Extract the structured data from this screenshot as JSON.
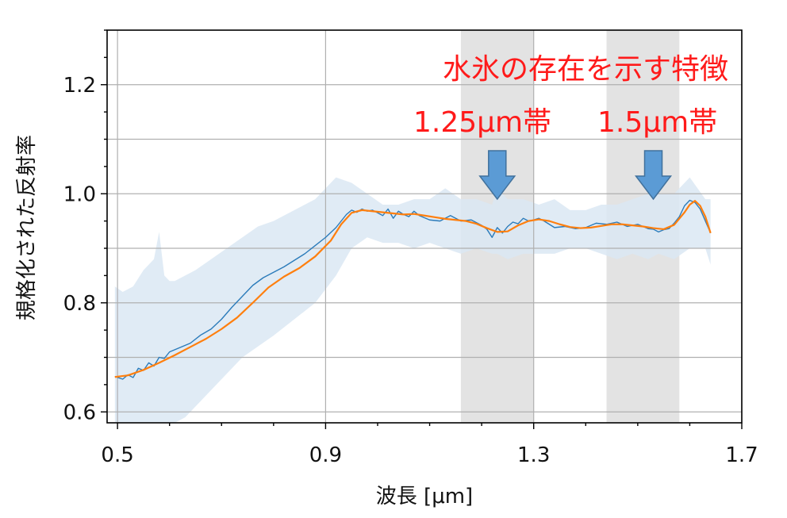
{
  "chart_data": {
    "type": "line",
    "xlabel": "波長 [μm]",
    "ylabel": "規格化された反射率",
    "xlim": [
      0.48,
      1.7
    ],
    "ylim": [
      0.58,
      1.3
    ],
    "xticks": [
      {
        "value": 0.5,
        "label": "0.5"
      },
      {
        "value": 0.9,
        "label": "0.9"
      },
      {
        "value": 1.3,
        "label": "1.3"
      },
      {
        "value": 1.7,
        "label": "1.7"
      }
    ],
    "yticks": [
      {
        "value": 0.6,
        "label": "0.6"
      },
      {
        "value": 0.8,
        "label": "0.8"
      },
      {
        "value": 1.0,
        "label": "1.0"
      },
      {
        "value": 1.2,
        "label": "1.2"
      }
    ],
    "grid": true,
    "colors": {
      "raw_line": "#2b7bba",
      "smooth_line": "#ff7f0e",
      "band": "#dbe7f3",
      "highlight": "#bdbdbd",
      "annotation": "#ff1a1a",
      "arrow_fill": "#5b9bd5",
      "arrow_stroke": "#41719c"
    },
    "highlight_bands": [
      {
        "x0": 1.16,
        "x1": 1.3
      },
      {
        "x0": 1.44,
        "x1": 1.58
      }
    ],
    "annotations": {
      "title": "水氷の存在を示す特徴",
      "band_1": "1.25μm帯",
      "band_2": "1.5μm帯"
    },
    "arrows": [
      {
        "x": 1.23
      },
      {
        "x": 1.53
      }
    ],
    "series": [
      {
        "x": [
          0.495,
          0.51,
          0.52,
          0.53,
          0.54,
          0.55,
          0.56,
          0.57,
          0.58,
          0.59,
          0.6,
          0.62,
          0.64,
          0.66,
          0.68,
          0.7,
          0.72,
          0.74,
          0.76,
          0.78,
          0.8,
          0.82,
          0.84,
          0.86,
          0.88,
          0.9,
          0.92,
          0.94,
          0.95,
          0.96,
          0.97,
          0.98,
          0.99,
          1.0,
          1.01,
          1.02,
          1.03,
          1.04,
          1.05,
          1.06,
          1.07,
          1.08,
          1.09,
          1.1,
          1.12,
          1.14,
          1.16,
          1.18,
          1.2,
          1.21,
          1.22,
          1.23,
          1.24,
          1.25,
          1.26,
          1.27,
          1.28,
          1.29,
          1.3,
          1.31,
          1.32,
          1.34,
          1.36,
          1.38,
          1.4,
          1.42,
          1.44,
          1.46,
          1.48,
          1.5,
          1.51,
          1.52,
          1.53,
          1.54,
          1.55,
          1.56,
          1.57,
          1.58,
          1.59,
          1.6,
          1.61,
          1.62,
          1.63,
          1.64
        ],
        "values": [
          0.665,
          0.66,
          0.668,
          0.663,
          0.68,
          0.676,
          0.69,
          0.684,
          0.7,
          0.698,
          0.71,
          0.718,
          0.726,
          0.741,
          0.752,
          0.77,
          0.792,
          0.812,
          0.832,
          0.846,
          0.856,
          0.866,
          0.878,
          0.89,
          0.905,
          0.92,
          0.938,
          0.962,
          0.97,
          0.966,
          0.972,
          0.968,
          0.97,
          0.965,
          0.96,
          0.972,
          0.955,
          0.968,
          0.962,
          0.958,
          0.968,
          0.96,
          0.956,
          0.952,
          0.95,
          0.96,
          0.95,
          0.952,
          0.942,
          0.935,
          0.92,
          0.938,
          0.928,
          0.94,
          0.948,
          0.945,
          0.955,
          0.95,
          0.952,
          0.955,
          0.95,
          0.938,
          0.94,
          0.936,
          0.938,
          0.946,
          0.944,
          0.948,
          0.94,
          0.944,
          0.94,
          0.936,
          0.935,
          0.93,
          0.934,
          0.936,
          0.946,
          0.958,
          0.978,
          0.988,
          0.984,
          0.972,
          0.95,
          0.928
        ]
      },
      {
        "x": [
          0.495,
          0.52,
          0.55,
          0.58,
          0.61,
          0.64,
          0.67,
          0.7,
          0.73,
          0.76,
          0.79,
          0.82,
          0.85,
          0.88,
          0.91,
          0.93,
          0.95,
          0.97,
          0.99,
          1.01,
          1.03,
          1.05,
          1.07,
          1.09,
          1.11,
          1.13,
          1.15,
          1.17,
          1.19,
          1.21,
          1.23,
          1.25,
          1.27,
          1.29,
          1.31,
          1.33,
          1.35,
          1.37,
          1.39,
          1.41,
          1.43,
          1.45,
          1.47,
          1.49,
          1.51,
          1.53,
          1.55,
          1.57,
          1.59,
          1.6,
          1.61,
          1.62,
          1.63,
          1.64
        ],
        "values": [
          0.664,
          0.667,
          0.677,
          0.69,
          0.704,
          0.719,
          0.734,
          0.752,
          0.773,
          0.8,
          0.828,
          0.848,
          0.864,
          0.885,
          0.914,
          0.944,
          0.965,
          0.97,
          0.968,
          0.966,
          0.964,
          0.962,
          0.963,
          0.96,
          0.957,
          0.954,
          0.952,
          0.95,
          0.945,
          0.937,
          0.93,
          0.931,
          0.942,
          0.95,
          0.953,
          0.95,
          0.944,
          0.939,
          0.937,
          0.938,
          0.941,
          0.944,
          0.944,
          0.942,
          0.94,
          0.937,
          0.935,
          0.943,
          0.966,
          0.98,
          0.987,
          0.978,
          0.958,
          0.928
        ]
      },
      {
        "name": "band",
        "x": [
          0.495,
          0.51,
          0.53,
          0.55,
          0.57,
          0.58,
          0.59,
          0.6,
          0.61,
          0.63,
          0.65,
          0.68,
          0.71,
          0.74,
          0.77,
          0.8,
          0.84,
          0.88,
          0.92,
          0.95,
          0.98,
          1.01,
          1.04,
          1.07,
          1.1,
          1.13,
          1.16,
          1.19,
          1.22,
          1.23,
          1.25,
          1.28,
          1.31,
          1.34,
          1.37,
          1.4,
          1.43,
          1.46,
          1.49,
          1.52,
          1.54,
          1.57,
          1.6,
          1.63,
          1.64
        ],
        "upper": [
          0.83,
          0.82,
          0.83,
          0.86,
          0.88,
          0.93,
          0.85,
          0.84,
          0.84,
          0.85,
          0.86,
          0.88,
          0.9,
          0.92,
          0.94,
          0.95,
          0.97,
          0.99,
          1.03,
          1.02,
          1.0,
          0.98,
          0.98,
          0.99,
          0.99,
          1.01,
          0.99,
          0.99,
          0.98,
          1.01,
          0.99,
          0.99,
          0.98,
          0.99,
          0.97,
          0.97,
          0.98,
          0.98,
          0.99,
          1.0,
          1.0,
          1.0,
          1.03,
          0.99,
          0.99
        ],
        "lower": [
          0.58,
          0.58,
          0.58,
          0.58,
          0.58,
          0.58,
          0.58,
          0.58,
          0.58,
          0.59,
          0.61,
          0.64,
          0.67,
          0.7,
          0.72,
          0.74,
          0.77,
          0.8,
          0.85,
          0.9,
          0.92,
          0.91,
          0.91,
          0.9,
          0.91,
          0.9,
          0.89,
          0.9,
          0.89,
          0.89,
          0.88,
          0.89,
          0.89,
          0.89,
          0.9,
          0.9,
          0.89,
          0.88,
          0.89,
          0.88,
          0.89,
          0.88,
          0.9,
          0.9,
          0.87
        ]
      }
    ]
  }
}
